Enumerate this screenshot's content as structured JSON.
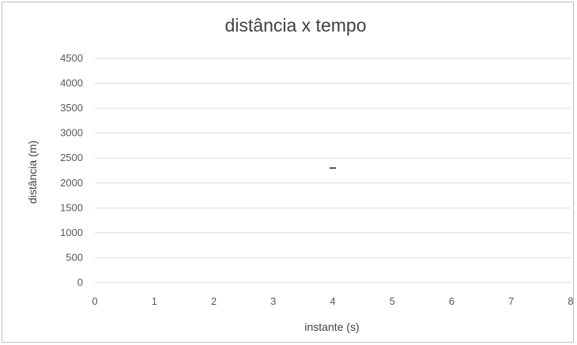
{
  "chart_data": {
    "type": "scatter",
    "title": "distância x tempo",
    "xlabel": "instante (s)",
    "ylabel": "distância (m)",
    "xlim": [
      0,
      8
    ],
    "ylim": [
      0,
      4500
    ],
    "x_ticks": [
      0,
      1,
      2,
      3,
      4,
      5,
      6,
      7,
      8
    ],
    "y_ticks": [
      0,
      500,
      1000,
      1500,
      2000,
      2500,
      3000,
      3500,
      4000,
      4500
    ],
    "grid": "horizontal",
    "legend": "none",
    "series": [
      {
        "x": [
          4
        ],
        "y": [
          2300
        ],
        "marker": "dash",
        "color": "#1f1f1f"
      }
    ]
  }
}
